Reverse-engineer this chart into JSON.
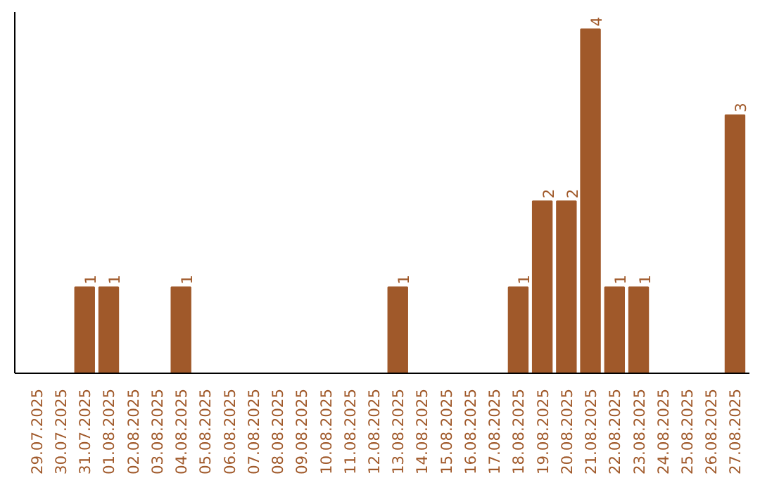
{
  "chart_data": {
    "type": "bar",
    "categories": [
      "29.07.2025",
      "30.07.2025",
      "31.07.2025",
      "01.08.2025",
      "02.08.2025",
      "03.08.2025",
      "04.08.2025",
      "05.08.2025",
      "06.08.2025",
      "07.08.2025",
      "08.08.2025",
      "09.08.2025",
      "10.08.2025",
      "11.08.2025",
      "12.08.2025",
      "13.08.2025",
      "14.08.2025",
      "15.08.2025",
      "16.08.2025",
      "17.08.2025",
      "18.08.2025",
      "19.08.2025",
      "20.08.2025",
      "21.08.2025",
      "22.08.2025",
      "23.08.2025",
      "24.08.2025",
      "25.08.2025",
      "26.08.2025",
      "27.08.2025"
    ],
    "values": [
      0,
      0,
      1,
      1,
      0,
      0,
      1,
      0,
      0,
      0,
      0,
      0,
      0,
      0,
      0,
      1,
      0,
      0,
      0,
      0,
      1,
      2,
      2,
      4,
      1,
      1,
      0,
      0,
      0,
      3
    ],
    "value_labels": [
      null,
      null,
      "1",
      "1",
      null,
      null,
      "1",
      null,
      null,
      null,
      null,
      null,
      null,
      null,
      null,
      "1",
      null,
      null,
      null,
      null,
      "1",
      "2",
      "2",
      "4",
      "1",
      "1",
      null,
      null,
      null,
      "3"
    ],
    "color": "#a0592a",
    "ylim": [
      0,
      4.2
    ],
    "grid": false,
    "tick_labels": "x"
  }
}
